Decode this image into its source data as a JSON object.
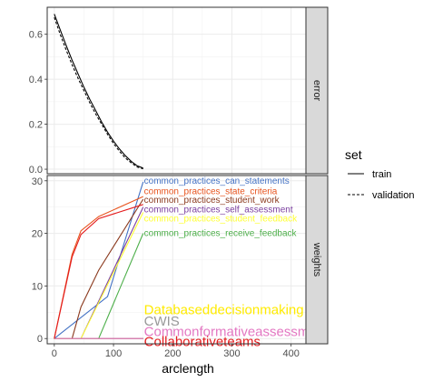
{
  "chart_data": {
    "type": "line",
    "xlabel": "arclength",
    "x_ticks": [
      0,
      100,
      200,
      300,
      400
    ],
    "xlim": [
      -12,
      425
    ],
    "facets": [
      {
        "strip": "error",
        "ylim": [
          -0.02,
          0.72
        ],
        "y_ticks": [
          0.0,
          0.2,
          0.4,
          0.6
        ],
        "y_tick_labels": [
          "0.0",
          "0.2",
          "0.4",
          "0.6"
        ],
        "series": [
          {
            "name": "train",
            "linetype": "solid",
            "color": "#000000",
            "x": [
              0,
              10,
              20,
              30,
              40,
              50,
              60,
              70,
              80,
              90,
              100,
              110,
              120,
              130,
              140,
              150
            ],
            "y": [
              0.69,
              0.62,
              0.55,
              0.485,
              0.425,
              0.365,
              0.31,
              0.26,
              0.21,
              0.165,
              0.125,
              0.09,
              0.06,
              0.035,
              0.015,
              0.005
            ]
          },
          {
            "name": "validation",
            "linetype": "dashed",
            "color": "#000000",
            "x": [
              0,
              10,
              20,
              30,
              40,
              50,
              60,
              70,
              80,
              90,
              100,
              110,
              120,
              130,
              140,
              150
            ],
            "y": [
              0.675,
              0.6,
              0.53,
              0.465,
              0.405,
              0.35,
              0.295,
              0.245,
              0.2,
              0.155,
              0.115,
              0.08,
              0.05,
              0.028,
              0.01,
              0.002
            ]
          }
        ]
      },
      {
        "strip": "weights",
        "ylim": [
          -1,
          31
        ],
        "y_ticks": [
          0,
          10,
          20,
          30
        ],
        "y_tick_labels": [
          "0",
          "10",
          "20",
          "30"
        ],
        "series": [
          {
            "name": "common_practices_can_statements",
            "color": "#4472c4",
            "x": [
              0,
              150
            ],
            "y": [
              0,
              0
            ]
          },
          {
            "name": "common_practices_state_criteria",
            "color": "#e8541e",
            "x": [
              0,
              30,
              45,
              75,
              150
            ],
            "y": [
              0,
              16,
              20.5,
              23.2,
              27.0
            ]
          },
          {
            "name": "common_practices_student_work",
            "color": "#8b3a1e",
            "x": [
              0,
              30,
              45,
              75,
              150
            ],
            "y": [
              0,
              0,
              6,
              13,
              26.5
            ]
          },
          {
            "name": "common_practices_self_assessment",
            "color": "#7b3fa0",
            "x": [
              0,
              150
            ],
            "y": [
              0,
              0
            ]
          },
          {
            "name": "common_practices_student_feedback",
            "color": "#ffff33",
            "x": [
              0,
              45,
              150
            ],
            "y": [
              0,
              0,
              24.0
            ]
          },
          {
            "name": "common_practices_receive_feedback",
            "color": "#4daf4a",
            "x": [
              0,
              75,
              150
            ],
            "y": [
              0,
              0,
              20.0
            ]
          },
          {
            "name": "Databaseddecisionmaking",
            "color": "#ffeb00",
            "x": [
              0,
              150
            ],
            "y": [
              0,
              0
            ]
          },
          {
            "name": "CWIS",
            "color": "#999999",
            "x": [
              0,
              150
            ],
            "y": [
              0,
              0
            ]
          },
          {
            "name": "Commonformativeassessment",
            "color": "#e377c2",
            "x": [
              0,
              150
            ],
            "y": [
              0,
              0
            ]
          },
          {
            "name": "Collaborativeteams",
            "color": "#e41a1c",
            "x": [
              0,
              30,
              45,
              75,
              150
            ],
            "y": [
              0,
              15.5,
              19.8,
              22.8,
              25.5
            ]
          }
        ],
        "extra_segments": [
          {
            "color": "#4472c4",
            "x": [
              0,
              90,
              150
            ],
            "y": [
              0,
              8,
              29.8
            ]
          },
          {
            "color": "#7b3fa0",
            "x": [
              0,
              45,
              150
            ],
            "y": [
              0,
              0,
              25.0
            ]
          }
        ],
        "labels": [
          {
            "text": "common_practices_can_statements",
            "color": "#4472c4",
            "size": "small",
            "y": 30.0
          },
          {
            "text": "common_practices_state_criteria",
            "color": "#e8541e",
            "size": "small",
            "y": 28.0
          },
          {
            "text": "common_practices_student_work",
            "color": "#8b3a1e",
            "size": "small",
            "y": 26.3
          },
          {
            "text": "common_practices_self_assessment",
            "color": "#7b3fa0",
            "size": "small",
            "y": 24.5
          },
          {
            "text": "common_practices_student_feedback",
            "color": "#ffff33",
            "size": "small",
            "y": 22.8
          },
          {
            "text": "common_practices_receive_feedback",
            "color": "#4daf4a",
            "size": "small",
            "y": 20.0
          },
          {
            "text": "Databaseddecisionmaking",
            "color": "#ffeb00",
            "size": "big",
            "y": 5.5
          },
          {
            "text": "CWIS",
            "color": "#999999",
            "size": "big",
            "y": 3.3
          },
          {
            "text": "Commonformativeassessment",
            "color": "#e377c2",
            "size": "mid",
            "y": 1.3
          },
          {
            "text": "Collaborativeteams",
            "color": "#e41a1c",
            "size": "big",
            "y": -0.6
          }
        ]
      }
    ],
    "legend": {
      "title": "set",
      "position": "right",
      "entries": [
        {
          "label": "train",
          "linetype": "solid"
        },
        {
          "label": "validation",
          "linetype": "dashed"
        }
      ]
    },
    "grid": true
  }
}
